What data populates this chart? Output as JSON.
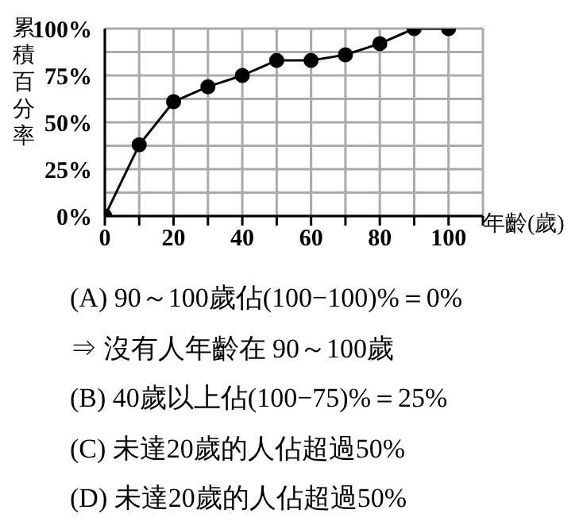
{
  "chart_data": {
    "type": "line",
    "xlabel": "年齡(歲)",
    "ylabel": "累積百分率",
    "x": [
      0,
      10,
      20,
      30,
      40,
      50,
      60,
      70,
      80,
      90,
      100
    ],
    "series": [
      {
        "color": "#000000",
        "values": [
          0,
          38,
          61,
          69,
          75,
          83,
          83,
          86,
          92,
          100,
          100
        ]
      }
    ],
    "xlim": [
      0,
      110
    ],
    "xticks": [
      0,
      {
        "value": 10,
        "label": null
      },
      20,
      {
        "value": 30,
        "label": null
      },
      40,
      {
        "value": 50,
        "label": null
      },
      60,
      {
        "value": 70,
        "label": null
      },
      80,
      {
        "value": 90,
        "label": null
      },
      100,
      {
        "value": 110,
        "label": null
      }
    ],
    "ylim": [
      0,
      100
    ],
    "yticks": [
      {
        "value": 0,
        "label": "0%"
      },
      {
        "value": 12.5,
        "label": null
      },
      {
        "value": 25,
        "label": "25%"
      },
      {
        "value": 37.5,
        "label": null
      },
      {
        "value": 50,
        "label": "50%"
      },
      {
        "value": 62.5,
        "label": null
      },
      {
        "value": 75,
        "label": "75%"
      },
      {
        "value": 87.5,
        "label": null
      },
      {
        "value": 100,
        "label": "100%"
      }
    ],
    "grid": true,
    "marker": "circle",
    "line_style": "solid",
    "legend": false,
    "annotations": [
      "(A) 90～100歲佔(100−100)%＝0%",
      "⇒  沒有人年齡在 90～100歲",
      "(B) 40歲以上佔(100−75)%＝25%",
      "(C) 未達20歲的人佔超過50%",
      "(D) 未達20歲的人佔超過50%"
    ]
  }
}
